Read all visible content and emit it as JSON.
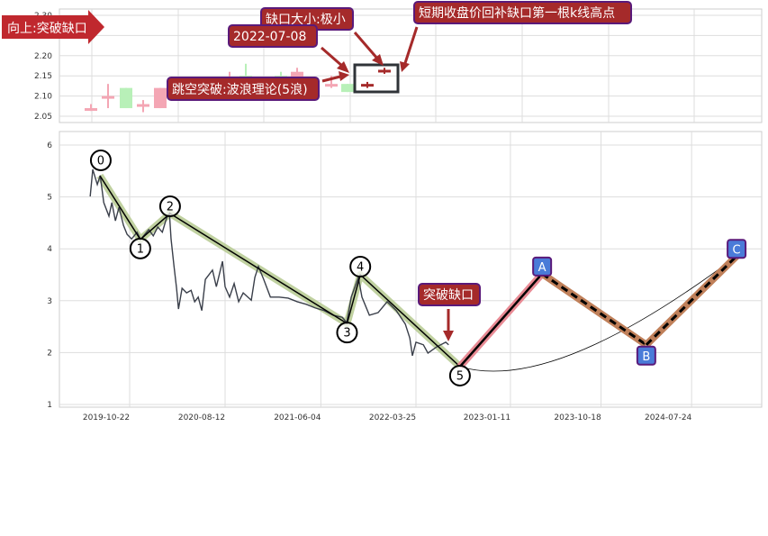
{
  "chart_data": [
    {
      "type": "candlestick",
      "ylim": [
        2.04,
        2.3
      ],
      "yticks": [
        "2.05",
        "2.10",
        "2.15",
        "2.20",
        "2.25",
        "2.30"
      ],
      "grid": true,
      "candles": [
        {
          "open": 2.065,
          "close": 2.07,
          "high": 2.08,
          "low": 2.063
        },
        {
          "open": 2.095,
          "close": 2.1,
          "high": 2.13,
          "low": 2.07
        },
        {
          "open": 2.12,
          "close": 2.07,
          "high": 2.12,
          "low": 2.07
        },
        {
          "open": 2.08,
          "close": 2.08,
          "high": 2.09,
          "low": 2.06
        },
        {
          "open": 2.07,
          "close": 2.12,
          "high": 2.12,
          "low": 2.07
        },
        {
          "open": 2.14,
          "close": 2.14,
          "high": 2.16,
          "low": 2.13
        },
        {
          "open": 2.15,
          "close": 2.14,
          "high": 2.18,
          "low": 2.14
        },
        {
          "open": 2.15,
          "close": 2.145,
          "high": 2.16,
          "low": 2.14
        },
        {
          "open": 2.14,
          "close": 2.16,
          "high": 2.17,
          "low": 2.14
        },
        {
          "open": 2.13,
          "close": 2.13,
          "high": 2.15,
          "low": 2.12
        },
        {
          "open": 2.13,
          "close": 2.11,
          "high": 2.13,
          "low": 2.11
        },
        {
          "open": 2.125,
          "close": 2.13,
          "high": 2.135,
          "low": 2.12
        },
        {
          "open": 2.165,
          "close": 2.165,
          "high": 2.17,
          "low": 2.155
        }
      ],
      "colors": {
        "up": "#f4a6b4",
        "down": "#b8f0b8",
        "gap_candle": "#a52a2a"
      },
      "annotations": {
        "banner": "向上:突破缺口",
        "gap_size": "缺口大小:极小",
        "gap_date": "2022-07-08",
        "jump": "跳空突破:波浪理论(5浪)",
        "refill": "短期收盘价回补缺口第一根k线高点"
      }
    },
    {
      "type": "line",
      "ylim": [
        1,
        6.2
      ],
      "yticks": [
        "1",
        "2",
        "3",
        "4",
        "5",
        "6"
      ],
      "xticks": [
        "2019-10-22",
        "2020-08-12",
        "2021-06-04",
        "2022-03-25",
        "2023-01-11",
        "2023-10-18",
        "2024-07-24"
      ],
      "grid": true,
      "price": [
        [
          "2019-06-22",
          5.01
        ],
        [
          "2019-06-30",
          5.53
        ],
        [
          "2019-07-14",
          5.24
        ],
        [
          "2019-07-23",
          5.41
        ],
        [
          "2019-08-03",
          4.89
        ],
        [
          "2019-08-19",
          4.63
        ],
        [
          "2019-08-28",
          4.89
        ],
        [
          "2019-09-08",
          4.54
        ],
        [
          "2019-09-19",
          4.8
        ],
        [
          "2019-10-03",
          4.45
        ],
        [
          "2019-10-14",
          4.28
        ],
        [
          "2019-10-28",
          4.19
        ],
        [
          "2019-11-14",
          4.32
        ],
        [
          "2019-11-25",
          4.18
        ],
        [
          "2019-12-20",
          4.37
        ],
        [
          "2020-01-03",
          4.25
        ],
        [
          "2020-01-17",
          4.42
        ],
        [
          "2020-01-31",
          4.32
        ],
        [
          "2020-02-13",
          4.59
        ],
        [
          "2020-02-22",
          4.68
        ],
        [
          "2020-02-27",
          4.19
        ],
        [
          "2020-03-07",
          3.67
        ],
        [
          "2020-03-15",
          3.24
        ],
        [
          "2020-03-21",
          2.84
        ],
        [
          "2020-04-01",
          3.24
        ],
        [
          "2020-04-15",
          3.15
        ],
        [
          "2020-04-29",
          3.2
        ],
        [
          "2020-05-10",
          2.98
        ],
        [
          "2020-05-21",
          3.07
        ],
        [
          "2020-06-01",
          2.81
        ],
        [
          "2020-06-12",
          3.41
        ],
        [
          "2020-07-04",
          3.59
        ],
        [
          "2020-07-16",
          3.27
        ],
        [
          "2020-08-04",
          3.76
        ],
        [
          "2020-08-12",
          3.27
        ],
        [
          "2020-08-26",
          3.07
        ],
        [
          "2020-09-09",
          3.33
        ],
        [
          "2020-09-23",
          2.98
        ],
        [
          "2020-10-07",
          3.15
        ],
        [
          "2020-11-01",
          3.01
        ],
        [
          "2020-11-12",
          3.45
        ],
        [
          "2020-11-23",
          3.66
        ],
        [
          "2020-12-10",
          3.4
        ],
        [
          "2020-12-30",
          3.07
        ],
        [
          "2021-01-26",
          3.07
        ],
        [
          "2021-02-23",
          3.05
        ],
        [
          "2021-03-23",
          2.98
        ],
        [
          "2021-04-20",
          2.93
        ],
        [
          "2021-05-18",
          2.86
        ],
        [
          "2021-06-14",
          2.81
        ],
        [
          "2021-07-12",
          2.72
        ],
        [
          "2021-08-09",
          2.68
        ],
        [
          "2021-08-23",
          2.58
        ],
        [
          "2021-09-06",
          3.07
        ],
        [
          "2021-09-28",
          3.45
        ],
        [
          "2021-10-09",
          3.07
        ],
        [
          "2021-11-01",
          2.72
        ],
        [
          "2021-11-28",
          2.77
        ],
        [
          "2021-12-26",
          2.98
        ],
        [
          "2022-01-23",
          2.81
        ],
        [
          "2022-02-20",
          2.55
        ],
        [
          "2022-03-06",
          2.28
        ],
        [
          "2022-03-14",
          1.94
        ],
        [
          "2022-03-25",
          2.2
        ],
        [
          "2022-04-17",
          2.15
        ],
        [
          "2022-05-01",
          1.99
        ],
        [
          "2022-05-28",
          2.11
        ],
        [
          "2022-06-25",
          2.2
        ],
        [
          "2022-07-04",
          2.15
        ]
      ],
      "waves": [
        {
          "label": "0",
          "date": "2019-07-22",
          "value": 5.41
        },
        {
          "label": "1",
          "date": "2019-11-24",
          "value": 4.18
        },
        {
          "label": "2",
          "date": "2020-02-24",
          "value": 4.68
        },
        {
          "label": "3",
          "date": "2021-08-24",
          "value": 2.56
        },
        {
          "label": "4",
          "date": "2021-10-04",
          "value": 3.5
        },
        {
          "label": "5",
          "date": "2022-08-08",
          "value": 1.73
        }
      ],
      "projection": [
        {
          "label": "A",
          "date": "2023-04-19",
          "value": 3.52
        },
        {
          "label": "B",
          "date": "2024-03-06",
          "value": 2.15
        },
        {
          "label": "C",
          "date": "2024-12-10",
          "value": 3.86
        }
      ],
      "annotation": "突破缺口",
      "colors": {
        "price": "#3a3f4a",
        "wave_glow": "#b5c98f",
        "up_leg": "#e88a94",
        "corrective_leg": "#c0805a",
        "label_box": "#4a7bd8",
        "annotation_box": "#a52a2a"
      }
    }
  ]
}
